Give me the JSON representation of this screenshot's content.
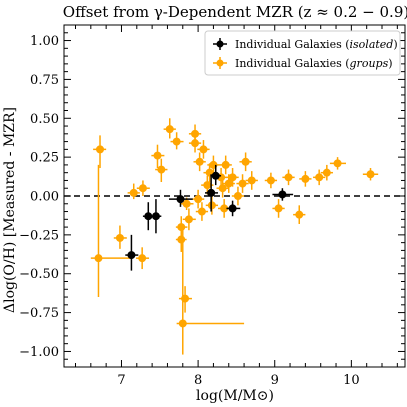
{
  "chart_data": {
    "type": "scatter",
    "title": "Offset from γ-Dependent MZR (z ≈ 0.2 − 0.9)",
    "xlabel": "log(M/M⊙)",
    "ylabel": "Δlog(O/H) [Measured - MZR]",
    "xlim": [
      6.25,
      10.7
    ],
    "ylim": [
      -1.1,
      1.1
    ],
    "xticks": [
      7,
      8,
      9,
      10
    ],
    "yticks": [
      -1.0,
      -0.75,
      -0.5,
      -0.25,
      0.0,
      0.25,
      0.5,
      0.75,
      1.0
    ],
    "xtick_labels": [
      "7",
      "8",
      "9",
      "10"
    ],
    "ytick_labels": [
      "−1.00",
      "−0.75",
      "−0.50",
      "−0.25",
      "0.00",
      "0.25",
      "0.50",
      "0.75",
      "1.00"
    ],
    "reference_line": {
      "y": 0.0,
      "style": "dashed",
      "color": "#000000"
    },
    "legend": {
      "position": "top-right"
    },
    "series": [
      {
        "name": "Individual Galaxies (isolated)",
        "name_plain": "Individual Galaxies (",
        "name_italic": "isolated",
        "color": "#000000",
        "points": [
          {
            "x": 7.13,
            "y": -0.38,
            "xlo": 7.05,
            "xhi": 7.22,
            "ylo": -0.48,
            "yhi": -0.25
          },
          {
            "x": 7.35,
            "y": -0.13,
            "xlo": 7.28,
            "xhi": 7.42,
            "ylo": -0.22,
            "yhi": -0.04
          },
          {
            "x": 7.45,
            "y": -0.13,
            "xlo": 7.39,
            "xhi": 7.52,
            "ylo": -0.24,
            "yhi": -0.02
          },
          {
            "x": 7.77,
            "y": -0.02,
            "xlo": 7.62,
            "xhi": 7.93,
            "ylo": -0.07,
            "yhi": 0.04
          },
          {
            "x": 8.17,
            "y": 0.02,
            "xlo": 8.09,
            "xhi": 8.26,
            "ylo": -0.1,
            "yhi": 0.14
          },
          {
            "x": 8.23,
            "y": 0.13,
            "xlo": 8.16,
            "xhi": 8.3,
            "ylo": 0.07,
            "yhi": 0.2
          },
          {
            "x": 8.45,
            "y": -0.08,
            "xlo": 8.37,
            "xhi": 8.55,
            "ylo": -0.13,
            "yhi": -0.03
          },
          {
            "x": 9.1,
            "y": 0.01,
            "xlo": 8.97,
            "xhi": 9.24,
            "ylo": -0.03,
            "yhi": 0.05
          }
        ]
      },
      {
        "name": "Individual Galaxies (groups)",
        "name_plain": "Individual Galaxies (",
        "name_italic": "groups",
        "color": "#FFA500",
        "points": [
          {
            "x": 6.72,
            "y": 0.3,
            "xlo": 6.63,
            "xhi": 6.8,
            "ylo": 0.18,
            "yhi": 0.39
          },
          {
            "x": 6.7,
            "y": -0.4,
            "xlo": 6.6,
            "xhi": 7.12,
            "ylo": -0.65,
            "yhi": 0.2
          },
          {
            "x": 6.98,
            "y": -0.27,
            "xlo": 6.9,
            "xhi": 7.07,
            "ylo": -0.34,
            "yhi": -0.19
          },
          {
            "x": 7.16,
            "y": 0.02,
            "xlo": 7.08,
            "xhi": 7.24,
            "ylo": -0.02,
            "yhi": 0.08
          },
          {
            "x": 7.28,
            "y": 0.05,
            "xlo": 7.2,
            "xhi": 7.37,
            "ylo": 0.0,
            "yhi": 0.1
          },
          {
            "x": 7.27,
            "y": -0.4,
            "xlo": 7.19,
            "xhi": 7.36,
            "ylo": -0.47,
            "yhi": -0.33
          },
          {
            "x": 7.47,
            "y": 0.26,
            "xlo": 7.39,
            "xhi": 7.56,
            "ylo": 0.18,
            "yhi": 0.33
          },
          {
            "x": 7.52,
            "y": 0.17,
            "xlo": 7.44,
            "xhi": 7.6,
            "ylo": 0.09,
            "yhi": 0.24
          },
          {
            "x": 7.63,
            "y": 0.43,
            "xlo": 7.55,
            "xhi": 7.71,
            "ylo": 0.37,
            "yhi": 0.5
          },
          {
            "x": 7.72,
            "y": 0.35,
            "xlo": 7.64,
            "xhi": 7.81,
            "ylo": 0.3,
            "yhi": 0.41
          },
          {
            "x": 7.78,
            "y": -0.2,
            "xlo": 7.71,
            "xhi": 7.86,
            "ylo": -0.27,
            "yhi": -0.13
          },
          {
            "x": 7.78,
            "y": -0.28,
            "xlo": 7.71,
            "xhi": 7.85,
            "ylo": -0.36,
            "yhi": -0.2
          },
          {
            "x": 7.8,
            "y": -0.82,
            "xlo": 7.72,
            "xhi": 8.6,
            "ylo": -1.02,
            "yhi": -0.2
          },
          {
            "x": 7.83,
            "y": -0.66,
            "xlo": 7.75,
            "xhi": 7.92,
            "ylo": -0.75,
            "yhi": -0.58
          },
          {
            "x": 7.85,
            "y": -0.05,
            "xlo": 7.77,
            "xhi": 7.94,
            "ylo": -0.09,
            "yhi": -0.01
          },
          {
            "x": 7.88,
            "y": -0.15,
            "xlo": 7.8,
            "xhi": 7.97,
            "ylo": -0.22,
            "yhi": -0.08
          },
          {
            "x": 7.96,
            "y": 0.4,
            "xlo": 7.88,
            "xhi": 8.04,
            "ylo": 0.34,
            "yhi": 0.46
          },
          {
            "x": 7.96,
            "y": 0.34,
            "xlo": 7.88,
            "xhi": 8.04,
            "ylo": 0.28,
            "yhi": 0.4
          },
          {
            "x": 8.0,
            "y": -0.02,
            "xlo": 7.92,
            "xhi": 8.08,
            "ylo": -0.08,
            "yhi": 0.04
          },
          {
            "x": 8.02,
            "y": 0.22,
            "xlo": 7.94,
            "xhi": 8.1,
            "ylo": 0.16,
            "yhi": 0.28
          },
          {
            "x": 8.05,
            "y": -0.1,
            "xlo": 7.97,
            "xhi": 8.13,
            "ylo": -0.16,
            "yhi": -0.04
          },
          {
            "x": 8.07,
            "y": 0.3,
            "xlo": 7.99,
            "xhi": 8.15,
            "ylo": 0.24,
            "yhi": 0.36
          },
          {
            "x": 8.12,
            "y": 0.07,
            "xlo": 8.04,
            "xhi": 8.2,
            "ylo": 0.01,
            "yhi": 0.13
          },
          {
            "x": 8.15,
            "y": 0.15,
            "xlo": 8.07,
            "xhi": 8.23,
            "ylo": 0.09,
            "yhi": 0.21
          },
          {
            "x": 8.18,
            "y": -0.06,
            "xlo": 8.1,
            "xhi": 8.26,
            "ylo": -0.12,
            "yhi": 0.0
          },
          {
            "x": 8.2,
            "y": 0.2,
            "xlo": 8.12,
            "xhi": 8.28,
            "ylo": 0.15,
            "yhi": 0.26
          },
          {
            "x": 8.3,
            "y": 0.12,
            "xlo": 8.22,
            "xhi": 8.38,
            "ylo": 0.06,
            "yhi": 0.18
          },
          {
            "x": 8.32,
            "y": 0.05,
            "xlo": 8.24,
            "xhi": 8.4,
            "ylo": -0.01,
            "yhi": 0.11
          },
          {
            "x": 8.34,
            "y": -0.08,
            "xlo": 8.26,
            "xhi": 8.42,
            "ylo": -0.14,
            "yhi": -0.02
          },
          {
            "x": 8.36,
            "y": 0.2,
            "xlo": 8.28,
            "xhi": 8.44,
            "ylo": 0.14,
            "yhi": 0.26
          },
          {
            "x": 8.4,
            "y": 0.08,
            "xlo": 8.32,
            "xhi": 8.48,
            "ylo": 0.02,
            "yhi": 0.14
          },
          {
            "x": 8.45,
            "y": 0.12,
            "xlo": 8.37,
            "xhi": 8.53,
            "ylo": 0.06,
            "yhi": 0.18
          },
          {
            "x": 8.52,
            "y": 0.0,
            "xlo": 8.44,
            "xhi": 8.6,
            "ylo": -0.06,
            "yhi": 0.06
          },
          {
            "x": 8.58,
            "y": 0.08,
            "xlo": 8.5,
            "xhi": 8.66,
            "ylo": 0.02,
            "yhi": 0.14
          },
          {
            "x": 8.62,
            "y": 0.22,
            "xlo": 8.54,
            "xhi": 8.7,
            "ylo": 0.16,
            "yhi": 0.28
          },
          {
            "x": 8.7,
            "y": 0.1,
            "xlo": 8.62,
            "xhi": 8.78,
            "ylo": 0.04,
            "yhi": 0.16
          },
          {
            "x": 8.95,
            "y": 0.1,
            "xlo": 8.87,
            "xhi": 9.03,
            "ylo": 0.05,
            "yhi": 0.15
          },
          {
            "x": 9.05,
            "y": -0.08,
            "xlo": 8.97,
            "xhi": 9.13,
            "ylo": -0.14,
            "yhi": -0.02
          },
          {
            "x": 9.18,
            "y": 0.12,
            "xlo": 9.1,
            "xhi": 9.26,
            "ylo": 0.07,
            "yhi": 0.17
          },
          {
            "x": 9.32,
            "y": -0.12,
            "xlo": 9.24,
            "xhi": 9.4,
            "ylo": -0.18,
            "yhi": -0.06
          },
          {
            "x": 9.4,
            "y": 0.11,
            "xlo": 9.32,
            "xhi": 9.48,
            "ylo": 0.06,
            "yhi": 0.16
          },
          {
            "x": 9.58,
            "y": 0.12,
            "xlo": 9.5,
            "xhi": 9.66,
            "ylo": 0.07,
            "yhi": 0.17
          },
          {
            "x": 9.68,
            "y": 0.15,
            "xlo": 9.6,
            "xhi": 9.76,
            "ylo": 0.1,
            "yhi": 0.2
          },
          {
            "x": 9.82,
            "y": 0.21,
            "xlo": 9.72,
            "xhi": 9.93,
            "ylo": 0.17,
            "yhi": 0.25
          },
          {
            "x": 10.25,
            "y": 0.14,
            "xlo": 10.15,
            "xhi": 10.35,
            "ylo": 0.1,
            "yhi": 0.18
          }
        ]
      }
    ]
  }
}
